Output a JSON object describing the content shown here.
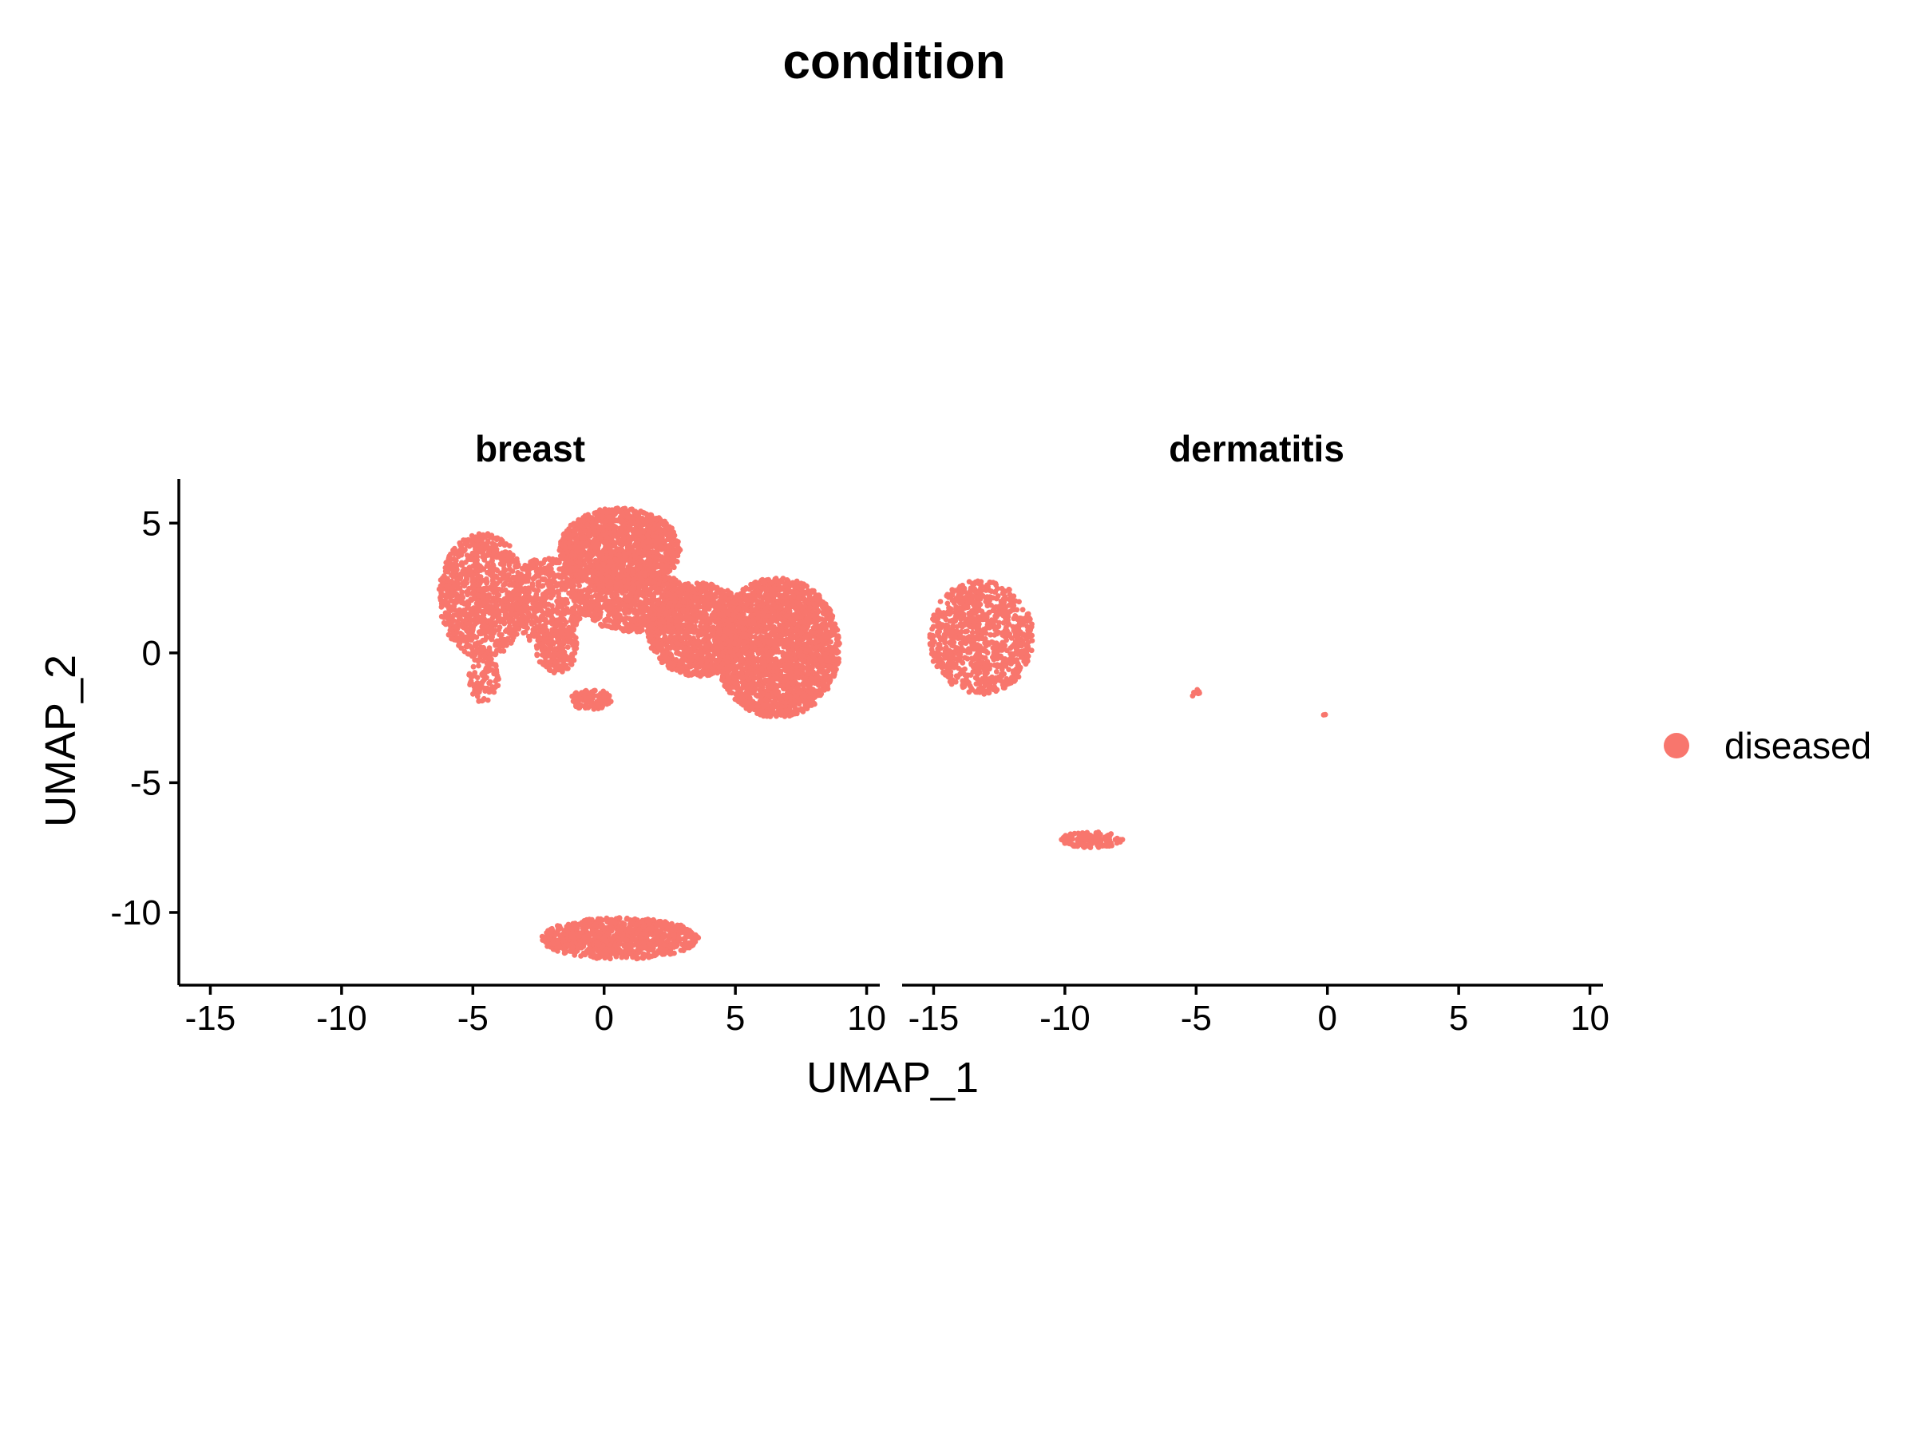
{
  "chart_data": {
    "type": "scatter",
    "title": "condition",
    "xlabel": "UMAP_1",
    "ylabel": "UMAP_2",
    "xlim": [
      -16.2,
      10.5
    ],
    "ylim": [
      -12.8,
      6.7
    ],
    "xticks": [
      "-15",
      "-10",
      "-5",
      "0",
      "5",
      "10"
    ],
    "xtick_values": [
      -15,
      -10,
      -5,
      0,
      5,
      10
    ],
    "yticks": [
      "5",
      "0",
      "-5",
      "-10"
    ],
    "ytick_values": [
      5,
      0,
      -5,
      -10
    ],
    "grid": false,
    "legend": {
      "title": "",
      "position": "right",
      "entries": [
        {
          "name": "diseased",
          "color": "#F8766D"
        }
      ]
    },
    "point_color": "#F8766D",
    "panels": [
      {
        "name": "breast",
        "clusters": [
          {
            "cx": -4.6,
            "cy": 2.2,
            "rx": 1.7,
            "ry": 2.4,
            "n": 900
          },
          {
            "cx": -2.2,
            "cy": 2.0,
            "rx": 1.4,
            "ry": 1.7,
            "n": 500
          },
          {
            "cx": -1.8,
            "cy": 0.2,
            "rx": 0.8,
            "ry": 1.0,
            "n": 200
          },
          {
            "cx": 0.6,
            "cy": 4.0,
            "rx": 2.3,
            "ry": 1.6,
            "n": 1400
          },
          {
            "cx": 1.2,
            "cy": 2.0,
            "rx": 2.2,
            "ry": 1.2,
            "n": 800
          },
          {
            "cx": 3.6,
            "cy": 0.9,
            "rx": 2.0,
            "ry": 1.8,
            "n": 1100
          },
          {
            "cx": 6.6,
            "cy": 0.2,
            "rx": 2.4,
            "ry": 2.7,
            "n": 2200
          },
          {
            "cx": -4.6,
            "cy": -1.0,
            "rx": 0.6,
            "ry": 0.9,
            "n": 90
          },
          {
            "cx": -0.5,
            "cy": -1.8,
            "rx": 0.8,
            "ry": 0.4,
            "n": 110
          },
          {
            "cx": 0.6,
            "cy": -11.0,
            "rx": 3.0,
            "ry": 0.8,
            "n": 900
          }
        ]
      },
      {
        "name": "dermatitis",
        "clusters": [
          {
            "cx": -13.2,
            "cy": 0.6,
            "rx": 2.0,
            "ry": 2.2,
            "n": 900
          },
          {
            "cx": -5.0,
            "cy": -1.6,
            "rx": 0.15,
            "ry": 0.2,
            "n": 8
          },
          {
            "cx": -0.1,
            "cy": -2.4,
            "rx": 0.05,
            "ry": 0.05,
            "n": 2
          },
          {
            "cx": -9.0,
            "cy": -7.2,
            "rx": 1.2,
            "ry": 0.3,
            "n": 130
          }
        ]
      }
    ]
  }
}
